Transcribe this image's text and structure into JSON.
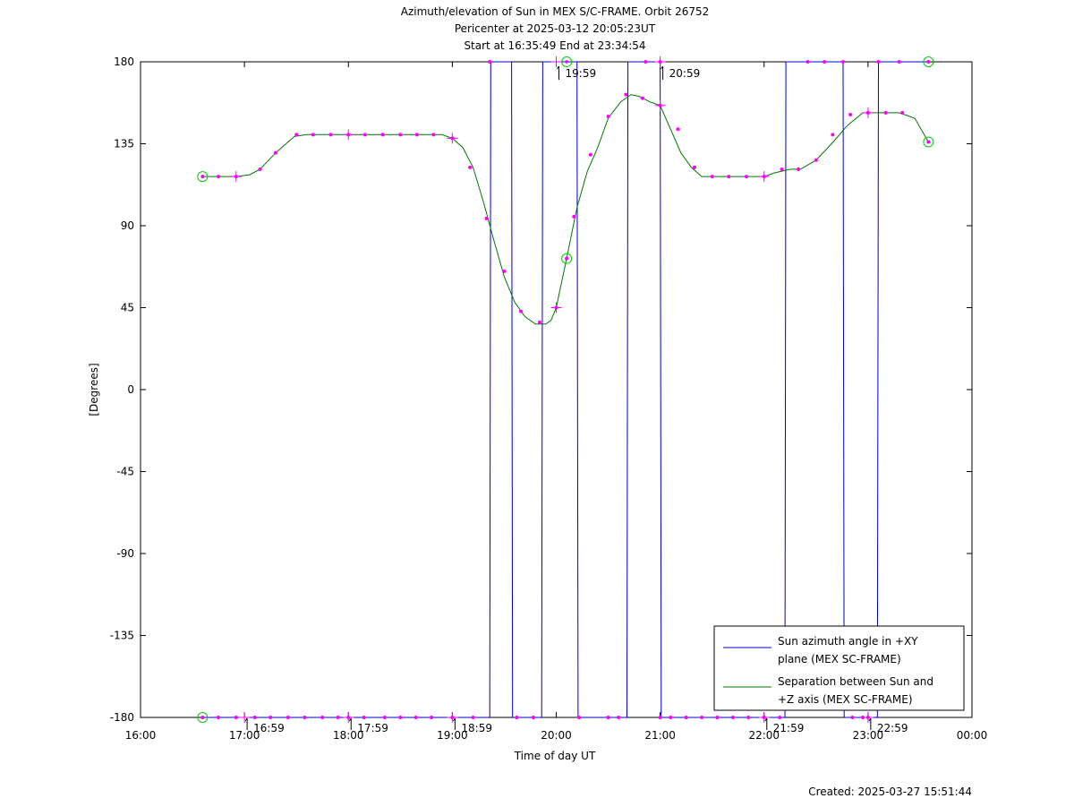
{
  "chart_data": {
    "type": "line",
    "title_lines": [
      "Azimuth/elevation of Sun in MEX S/C-FRAME.  Orbit 26752",
      "Pericenter at 2025-03-12 20:05:23UT",
      "Start at 16:35:49 End at 23:34:54"
    ],
    "xlabel": "Time of day UT",
    "ylabel": "[Degrees]",
    "footer": "Created: 2025-03-27 15:51:44",
    "x_axis": {
      "unit": "hours",
      "range": [
        16,
        24
      ],
      "ticks": [
        16,
        17,
        18,
        19,
        20,
        21,
        22,
        23,
        24
      ],
      "tick_labels": [
        "16:00",
        "17:00",
        "18:00",
        "19:00",
        "20:00",
        "21:00",
        "22:00",
        "23:00",
        "00:00"
      ]
    },
    "y_axis": {
      "range": [
        -180,
        180
      ],
      "ticks": [
        -180,
        -135,
        -90,
        -45,
        0,
        45,
        90,
        135,
        180
      ],
      "tick_labels": [
        "-180",
        "-135",
        "-90",
        "-45",
        "0",
        "45",
        "90",
        "135",
        "180"
      ]
    },
    "legend": {
      "placement": "bottom-right",
      "entries": [
        {
          "label_lines": [
            "Sun azimuth angle in +XY",
            "plane (MEX SC-FRAME)"
          ],
          "color": "#0000cc"
        },
        {
          "label_lines": [
            "Separation between Sun and",
            "+Z axis (MEX SC-FRAME)"
          ],
          "color": "#007700"
        }
      ]
    },
    "time_markers": [
      {
        "x": 17.0,
        "label": "16:59",
        "position": "bottom"
      },
      {
        "x": 18.0,
        "label": "17:59",
        "position": "bottom"
      },
      {
        "x": 19.0,
        "label": "18:59",
        "position": "bottom"
      },
      {
        "x": 20.0,
        "label": "19:59",
        "position": "top"
      },
      {
        "x": 21.0,
        "label": "20:59",
        "position": "top"
      },
      {
        "x": 22.0,
        "label": "21:59",
        "position": "bottom"
      },
      {
        "x": 23.0,
        "label": "22:59",
        "position": "bottom"
      }
    ],
    "series": [
      {
        "name": "Sun azimuth angle in +XY plane (MEX SC-FRAME)",
        "color": "#0000cc",
        "points": [
          [
            16.597,
            -180
          ],
          [
            19.36,
            -180
          ],
          [
            19.37,
            180
          ],
          [
            19.57,
            180
          ],
          [
            19.58,
            -180
          ],
          [
            19.86,
            -180
          ],
          [
            19.87,
            180
          ],
          [
            20.2,
            180
          ],
          [
            20.21,
            -180
          ],
          [
            20.68,
            -180
          ],
          [
            20.69,
            180
          ],
          [
            21.0,
            180
          ],
          [
            21.01,
            -180
          ],
          [
            22.2,
            -180
          ],
          [
            22.21,
            180
          ],
          [
            22.76,
            180
          ],
          [
            22.77,
            -180
          ],
          [
            23.09,
            -180
          ],
          [
            23.1,
            180
          ],
          [
            23.581,
            180
          ]
        ]
      },
      {
        "name": "Separation between Sun and +Z axis (MEX SC-FRAME)",
        "color": "#007700",
        "points": [
          [
            16.597,
            117
          ],
          [
            16.75,
            117
          ],
          [
            16.92,
            117
          ],
          [
            17.05,
            118
          ],
          [
            17.15,
            121
          ],
          [
            17.3,
            130
          ],
          [
            17.48,
            139
          ],
          [
            17.6,
            140
          ],
          [
            18.0,
            140
          ],
          [
            18.5,
            140
          ],
          [
            18.9,
            140
          ],
          [
            19.0,
            138
          ],
          [
            19.1,
            133
          ],
          [
            19.2,
            122
          ],
          [
            19.3,
            103
          ],
          [
            19.4,
            82
          ],
          [
            19.5,
            62
          ],
          [
            19.6,
            48
          ],
          [
            19.7,
            40
          ],
          [
            19.8,
            36
          ],
          [
            19.9,
            36
          ],
          [
            19.95,
            38
          ],
          [
            20.0,
            45
          ],
          [
            20.1,
            72
          ],
          [
            20.2,
            100
          ],
          [
            20.3,
            120
          ],
          [
            20.4,
            133
          ],
          [
            20.5,
            149
          ],
          [
            20.62,
            158
          ],
          [
            20.72,
            162
          ],
          [
            20.8,
            161
          ],
          [
            20.9,
            158
          ],
          [
            21.0,
            156
          ],
          [
            21.1,
            143
          ],
          [
            21.2,
            130
          ],
          [
            21.3,
            122
          ],
          [
            21.4,
            117
          ],
          [
            21.6,
            117
          ],
          [
            22.0,
            117
          ],
          [
            22.1,
            119
          ],
          [
            22.25,
            121
          ],
          [
            22.35,
            121
          ],
          [
            22.5,
            126
          ],
          [
            22.65,
            135
          ],
          [
            22.8,
            145
          ],
          [
            22.95,
            152
          ],
          [
            23.1,
            152
          ],
          [
            23.3,
            152
          ],
          [
            23.45,
            149
          ],
          [
            23.581,
            136
          ]
        ]
      }
    ],
    "point_markers": [
      [
        16.597,
        -180
      ],
      [
        16.75,
        -180
      ],
      [
        16.92,
        -180
      ],
      [
        17.1,
        -180
      ],
      [
        17.25,
        -180
      ],
      [
        17.42,
        -180
      ],
      [
        17.58,
        -180
      ],
      [
        17.75,
        -180
      ],
      [
        17.9,
        -180
      ],
      [
        18.0,
        -180
      ],
      [
        18.15,
        -180
      ],
      [
        18.35,
        -180
      ],
      [
        18.5,
        -180
      ],
      [
        18.65,
        -180
      ],
      [
        18.8,
        -180
      ],
      [
        19.0,
        -180
      ],
      [
        19.2,
        -180
      ],
      [
        19.62,
        -180
      ],
      [
        19.78,
        -180
      ],
      [
        20.22,
        -180
      ],
      [
        20.5,
        -180
      ],
      [
        20.6,
        -180
      ],
      [
        21.0,
        -180
      ],
      [
        21.1,
        -180
      ],
      [
        21.25,
        -180
      ],
      [
        21.4,
        -180
      ],
      [
        21.55,
        -180
      ],
      [
        21.7,
        -180
      ],
      [
        21.85,
        -180
      ],
      [
        22.0,
        -180
      ],
      [
        22.15,
        -180
      ],
      [
        22.85,
        -180
      ],
      [
        22.95,
        -180
      ],
      [
        23.0,
        -180
      ],
      [
        19.36,
        180
      ],
      [
        20.86,
        180
      ],
      [
        21.0,
        180
      ],
      [
        22.42,
        180
      ],
      [
        22.58,
        180
      ],
      [
        22.76,
        180
      ],
      [
        23.1,
        180
      ],
      [
        23.3,
        180
      ],
      [
        23.581,
        180
      ],
      [
        16.597,
        117
      ],
      [
        16.75,
        117
      ],
      [
        16.92,
        117
      ],
      [
        17.15,
        121
      ],
      [
        17.3,
        130
      ],
      [
        17.5,
        140
      ],
      [
        17.66,
        140
      ],
      [
        17.83,
        140
      ],
      [
        18.0,
        140
      ],
      [
        18.16,
        140
      ],
      [
        18.33,
        140
      ],
      [
        18.5,
        140
      ],
      [
        18.66,
        140
      ],
      [
        18.82,
        140
      ],
      [
        19.0,
        138
      ],
      [
        19.17,
        122
      ],
      [
        19.33,
        94
      ],
      [
        19.5,
        65
      ],
      [
        19.66,
        43
      ],
      [
        19.84,
        37
      ],
      [
        20.0,
        45
      ],
      [
        20.1,
        72
      ],
      [
        20.17,
        95
      ],
      [
        20.33,
        129
      ],
      [
        20.5,
        150
      ],
      [
        20.67,
        162
      ],
      [
        20.83,
        160
      ],
      [
        21.0,
        156
      ],
      [
        21.17,
        143
      ],
      [
        21.33,
        122
      ],
      [
        21.5,
        117
      ],
      [
        21.66,
        117
      ],
      [
        21.83,
        117
      ],
      [
        22.0,
        117
      ],
      [
        22.17,
        121
      ],
      [
        22.33,
        121
      ],
      [
        22.5,
        126
      ],
      [
        22.66,
        140
      ],
      [
        22.83,
        151
      ],
      [
        23.0,
        152
      ],
      [
        23.17,
        152
      ],
      [
        23.33,
        152
      ],
      [
        23.581,
        136
      ]
    ],
    "cross_markers": [
      [
        17.0,
        -180
      ],
      [
        18.0,
        -180
      ],
      [
        19.0,
        -180
      ],
      [
        20.0,
        180
      ],
      [
        21.0,
        180
      ],
      [
        22.0,
        -180
      ],
      [
        23.0,
        -180
      ],
      [
        16.92,
        117
      ],
      [
        18.0,
        140
      ],
      [
        19.0,
        138
      ],
      [
        20.0,
        45
      ],
      [
        21.0,
        156
      ],
      [
        22.0,
        117
      ],
      [
        23.0,
        152
      ]
    ],
    "circle_markers": [
      [
        16.597,
        -180
      ],
      [
        16.597,
        117
      ],
      [
        20.1,
        180
      ],
      [
        20.1,
        72
      ],
      [
        23.581,
        180
      ],
      [
        23.581,
        136
      ]
    ],
    "grid": false
  }
}
